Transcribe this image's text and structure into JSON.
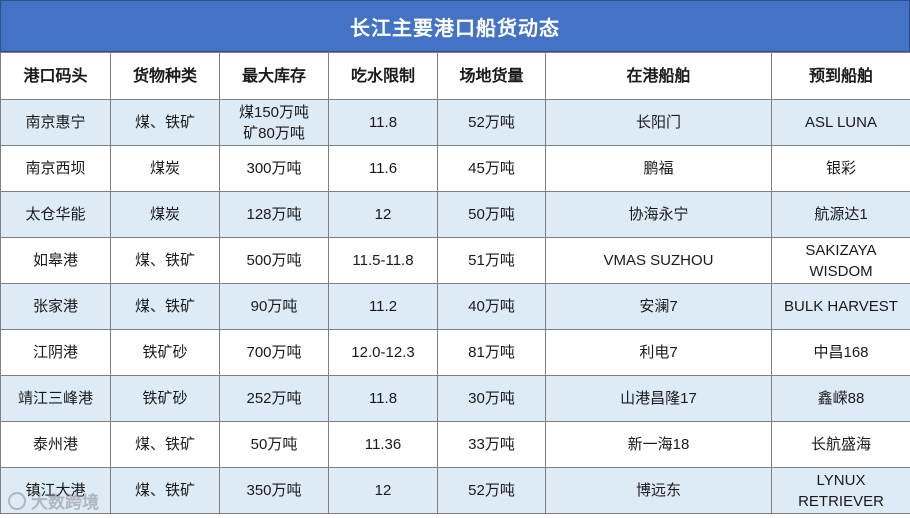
{
  "title": "长江主要港口船货动态",
  "columns": [
    "港口码头",
    "货物种类",
    "最大库存",
    "吃水限制",
    "场地货量",
    "在港船舶",
    "预到船舶"
  ],
  "rows": [
    [
      "南京惠宁",
      "煤、铁矿",
      "煤150万吨\n矿80万吨",
      "11.8",
      "52万吨",
      "长阳门",
      "ASL LUNA"
    ],
    [
      "南京西坝",
      "煤炭",
      "300万吨",
      "11.6",
      "45万吨",
      "鹏福",
      "银彩"
    ],
    [
      "太仓华能",
      "煤炭",
      "128万吨",
      "12",
      "50万吨",
      "协海永宁",
      "航源达1"
    ],
    [
      "如皋港",
      "煤、铁矿",
      "500万吨",
      "11.5-11.8",
      "51万吨",
      "VMAS SUZHOU",
      "SAKIZAYA\nWISDOM"
    ],
    [
      "张家港",
      "煤、铁矿",
      "90万吨",
      "11.2",
      "40万吨",
      "安澜7",
      "BULK HARVEST"
    ],
    [
      "江阴港",
      "铁矿砂",
      "700万吨",
      "12.0-12.3",
      "81万吨",
      "利电7",
      "中昌168"
    ],
    [
      "靖江三峰港",
      "铁矿砂",
      "252万吨",
      "11.8",
      "30万吨",
      "山港昌隆17",
      "鑫嵘88"
    ],
    [
      "泰州港",
      "煤、铁矿",
      "50万吨",
      "11.36",
      "33万吨",
      "新一海18",
      "长航盛海"
    ],
    [
      "镇江大港",
      "煤、铁矿",
      "350万吨",
      "12",
      "52万吨",
      "博远东",
      "LYNUX\nRETRIEVER"
    ]
  ],
  "watermark": "大数跨境",
  "colors": {
    "title_bg": "#4472C4",
    "title_text": "#FFFFFF",
    "row_band": "#DDEBF7",
    "grid": "#7F7F7F"
  }
}
